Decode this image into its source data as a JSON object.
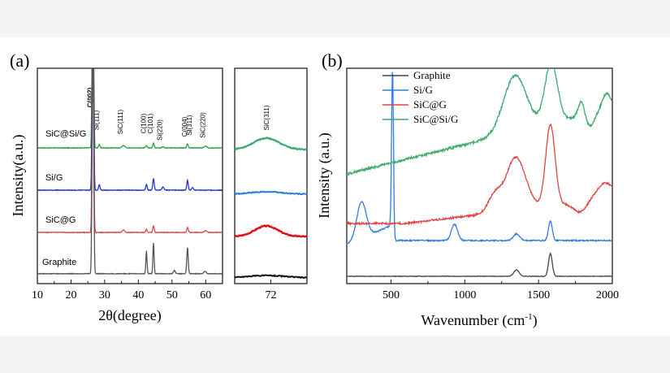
{
  "chart_data": [
    {
      "type": "line",
      "panel_label": "(a)",
      "xlabel": "2θ(degree)",
      "ylabel": "Intensity(a.u.)",
      "xlim": [
        10,
        65
      ],
      "x_ticks": [
        10,
        20,
        30,
        40,
        50,
        60
      ],
      "series": [
        {
          "name": "SiC@Si/G",
          "color": "#2e9e3e",
          "label": "SiC@Si/G"
        },
        {
          "name": "Si/G",
          "color": "#2233dd",
          "label": "Si/G"
        },
        {
          "name": "SiC@G",
          "color": "#e04545",
          "label": "SiC@G"
        },
        {
          "name": "Graphite",
          "color": "#555555",
          "label": "Graphite"
        }
      ],
      "peak_labels": [
        {
          "text": "C(002)",
          "x": 26.5
        },
        {
          "text": "Si(111)",
          "x": 28.4
        },
        {
          "text": "SiC(111)",
          "x": 35.6
        },
        {
          "text": "C(100)",
          "x": 42.4
        },
        {
          "text": "C(101)",
          "x": 44.5
        },
        {
          "text": "Si(220)",
          "x": 47.3
        },
        {
          "text": "C(004)",
          "x": 54.6
        },
        {
          "text": "Si(311)",
          "x": 56.1
        },
        {
          "text": "SiC(220)",
          "x": 60.0
        }
      ]
    },
    {
      "type": "line",
      "panel_label": "inset",
      "xlim": [
        68,
        76
      ],
      "x_ticks": [
        72
      ],
      "peak_label": "SiC(311)",
      "series": [
        {
          "name": "SiC@Si/G",
          "color": "#3daa6e"
        },
        {
          "name": "Si/G",
          "color": "#2f7fdc"
        },
        {
          "name": "SiC@G",
          "color": "#e01010"
        },
        {
          "name": "Graphite",
          "color": "#111111"
        }
      ]
    },
    {
      "type": "line",
      "panel_label": "(b)",
      "xlabel": "Wavenumber (cm",
      "xlabel_sup": "-1",
      "xlabel_end": ")",
      "ylabel": "Intensity (a.u.)",
      "xlim": [
        200,
        2000
      ],
      "x_ticks": [
        500,
        1000,
        1500,
        2000
      ],
      "legend": "top-left",
      "series": [
        {
          "name": "Graphite",
          "color": "#444444",
          "peaks_cm-1": [
            1350,
            1580
          ]
        },
        {
          "name": "Si/G",
          "color": "#2f7fdc",
          "peaks_cm-1": [
            300,
            510,
            930,
            1350,
            1580
          ]
        },
        {
          "name": "SiC@G",
          "color": "#e04545",
          "peaks_cm-1": [
            1350,
            1580
          ]
        },
        {
          "name": "SiC@Si/G",
          "color": "#3daa6e",
          "peaks_cm-1": [
            1350,
            1580,
            1790,
            1950
          ]
        }
      ]
    }
  ]
}
